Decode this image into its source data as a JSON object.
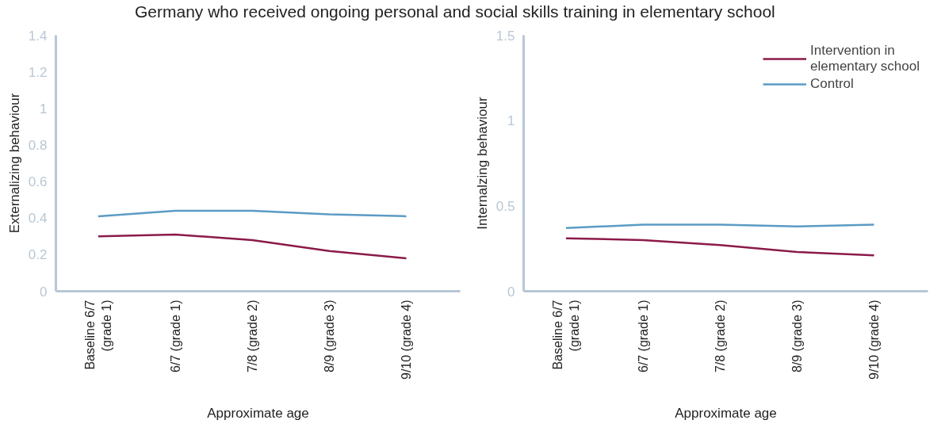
{
  "chart_data": [
    {
      "type": "line",
      "title": "Germany who received ongoing personal and social skills training in elementary school",
      "xlabel": "Approximate age",
      "ylabel": "Externalizing behaviour",
      "categories": [
        "Baseline 6/7\n(grade 1)",
        "6/7 (grade 1)",
        "7/8 (grade 2)",
        "8/9 (grade 3)",
        "9/10 (grade 4)"
      ],
      "series": [
        {
          "color": "#8b1a4a",
          "values": [
            0.3,
            0.31,
            0.28,
            0.22,
            0.18
          ]
        },
        {
          "color": "#5b9bc4",
          "values": [
            0.41,
            0.44,
            0.44,
            0.42,
            0.41
          ]
        }
      ],
      "ylim": [
        0,
        1.4
      ],
      "yticks": [
        0,
        0.2,
        0.4,
        0.6,
        0.8,
        1,
        1.2,
        1.4
      ],
      "grid": false
    },
    {
      "type": "line",
      "xlabel": "Approximate age",
      "ylabel": "Internalzing behaviour",
      "categories": [
        "Baseline 6/7\n(grade 1)",
        "6/7 (grade 1)",
        "7/8 (grade 2)",
        "8/9 (grade 3)",
        "9/10 (grade 4)"
      ],
      "series": [
        {
          "name": "Intervention in\nelementary school",
          "color": "#8b1a4a",
          "values": [
            0.31,
            0.3,
            0.27,
            0.23,
            0.21
          ]
        },
        {
          "name": "Control",
          "color": "#5b9bc4",
          "values": [
            0.37,
            0.39,
            0.39,
            0.38,
            0.39
          ]
        }
      ],
      "ylim": [
        0,
        1.5
      ],
      "yticks": [
        0,
        0.5,
        1,
        1.5
      ],
      "grid": false,
      "legend": "top right"
    }
  ]
}
